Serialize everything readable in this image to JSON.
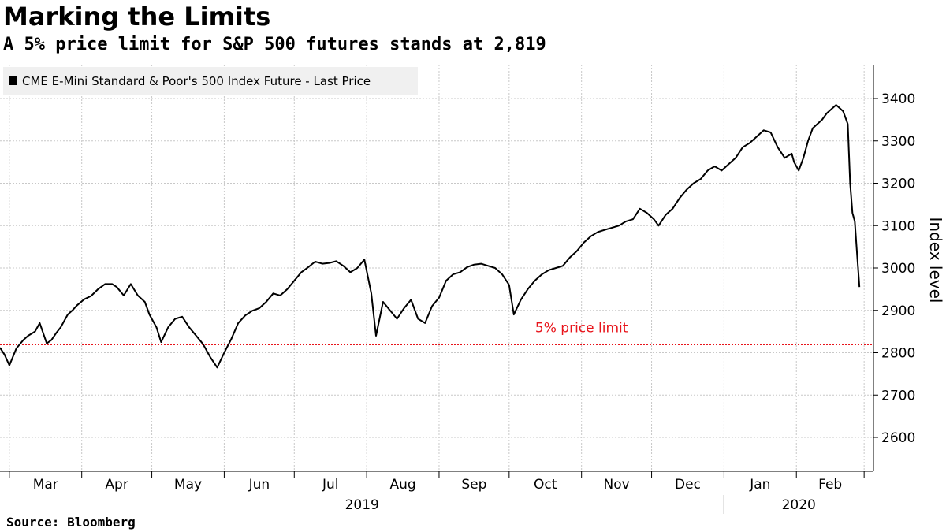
{
  "header": {
    "title": "Marking the Limits",
    "subtitle": "A 5% price limit for S&P 500 futures stands at 2,819"
  },
  "footer": {
    "source": "Source: Bloomberg"
  },
  "colors": {
    "line": "#000000",
    "grid": "#c8c8c8",
    "limit": "#e8141b",
    "legend_bg": "#f0f0f0"
  },
  "chart_data": {
    "type": "line",
    "legend": "CME E-Mini Standard & Poor's 500 Index Future - Last Price",
    "legend_position": "top-left",
    "ylabel": "Index level",
    "yaxis_side": "right",
    "ylim": [
      2520,
      3480
    ],
    "yticks": [
      2600,
      2700,
      2800,
      2900,
      3000,
      3100,
      3200,
      3300,
      3400
    ],
    "grid": true,
    "xlim": [
      "2019-02-25",
      "2020-03-05"
    ],
    "months": [
      {
        "label": "Mar",
        "date": "2019-03-01"
      },
      {
        "label": "Apr",
        "date": "2019-04-01"
      },
      {
        "label": "May",
        "date": "2019-05-01"
      },
      {
        "label": "Jun",
        "date": "2019-06-01"
      },
      {
        "label": "Jul",
        "date": "2019-07-01"
      },
      {
        "label": "Aug",
        "date": "2019-08-01"
      },
      {
        "label": "Sep",
        "date": "2019-09-01"
      },
      {
        "label": "Oct",
        "date": "2019-10-01"
      },
      {
        "label": "Nov",
        "date": "2019-11-01"
      },
      {
        "label": "Dec",
        "date": "2019-12-01"
      },
      {
        "label": "Jan",
        "date": "2020-01-01"
      },
      {
        "label": "Feb",
        "date": "2020-02-01"
      },
      {
        "label": "",
        "date": "2020-03-01"
      }
    ],
    "years": [
      {
        "label": "2019",
        "start": "2019-02-25",
        "end": "2020-01-01"
      },
      {
        "label": "2020",
        "start": "2020-01-01",
        "end": "2020-03-05"
      }
    ],
    "reference_line": {
      "value": 2819,
      "label": "5% price limit",
      "label_date": "2019-11-01"
    },
    "series": [
      {
        "x": [
          "2019-02-25",
          "2019-02-27",
          "2019-03-01",
          "2019-03-04",
          "2019-03-07",
          "2019-03-09",
          "2019-03-12",
          "2019-03-14",
          "2019-03-17",
          "2019-03-19",
          "2019-03-21",
          "2019-03-23",
          "2019-03-26",
          "2019-03-28",
          "2019-03-30",
          "2019-04-02",
          "2019-04-05",
          "2019-04-08",
          "2019-04-11",
          "2019-04-14",
          "2019-04-16",
          "2019-04-19",
          "2019-04-22",
          "2019-04-25",
          "2019-04-28",
          "2019-04-30",
          "2019-05-03",
          "2019-05-05",
          "2019-05-08",
          "2019-05-11",
          "2019-05-14",
          "2019-05-17",
          "2019-05-20",
          "2019-05-23",
          "2019-05-26",
          "2019-05-29",
          "2019-06-01",
          "2019-06-04",
          "2019-06-07",
          "2019-06-10",
          "2019-06-13",
          "2019-06-16",
          "2019-06-19",
          "2019-06-22",
          "2019-06-25",
          "2019-06-28",
          "2019-07-01",
          "2019-07-04",
          "2019-07-07",
          "2019-07-10",
          "2019-07-13",
          "2019-07-16",
          "2019-07-19",
          "2019-07-22",
          "2019-07-25",
          "2019-07-28",
          "2019-07-31",
          "2019-08-03",
          "2019-08-05",
          "2019-08-08",
          "2019-08-11",
          "2019-08-14",
          "2019-08-17",
          "2019-08-20",
          "2019-08-23",
          "2019-08-26",
          "2019-08-29",
          "2019-09-01",
          "2019-09-04",
          "2019-09-07",
          "2019-09-10",
          "2019-09-13",
          "2019-09-16",
          "2019-09-19",
          "2019-09-22",
          "2019-09-25",
          "2019-09-28",
          "2019-10-01",
          "2019-10-03",
          "2019-10-06",
          "2019-10-09",
          "2019-10-12",
          "2019-10-15",
          "2019-10-18",
          "2019-10-21",
          "2019-10-24",
          "2019-10-27",
          "2019-10-30",
          "2019-11-02",
          "2019-11-05",
          "2019-11-08",
          "2019-11-11",
          "2019-11-14",
          "2019-11-17",
          "2019-11-20",
          "2019-11-23",
          "2019-11-26",
          "2019-11-29",
          "2019-12-02",
          "2019-12-04",
          "2019-12-07",
          "2019-12-10",
          "2019-12-13",
          "2019-12-16",
          "2019-12-19",
          "2019-12-22",
          "2019-12-25",
          "2019-12-28",
          "2019-12-31",
          "2020-01-03",
          "2020-01-06",
          "2020-01-09",
          "2020-01-12",
          "2020-01-15",
          "2020-01-18",
          "2020-01-21",
          "2020-01-24",
          "2020-01-27",
          "2020-01-30",
          "2020-01-31",
          "2020-02-02",
          "2020-02-04",
          "2020-02-06",
          "2020-02-08",
          "2020-02-10",
          "2020-02-12",
          "2020-02-14",
          "2020-02-16",
          "2020-02-18",
          "2020-02-19",
          "2020-02-21",
          "2020-02-23",
          "2020-02-24",
          "2020-02-25",
          "2020-02-26",
          "2020-02-27",
          "2020-02-28"
        ],
        "values": [
          2812,
          2795,
          2770,
          2810,
          2830,
          2840,
          2850,
          2870,
          2822,
          2830,
          2846,
          2860,
          2890,
          2900,
          2912,
          2926,
          2934,
          2950,
          2962,
          2962,
          2955,
          2935,
          2962,
          2935,
          2920,
          2890,
          2860,
          2825,
          2860,
          2880,
          2885,
          2860,
          2840,
          2820,
          2790,
          2765,
          2800,
          2832,
          2870,
          2888,
          2899,
          2905,
          2920,
          2940,
          2935,
          2950,
          2970,
          2990,
          3002,
          3015,
          3010,
          3012,
          3016,
          3005,
          2990,
          3000,
          3020,
          2940,
          2840,
          2920,
          2900,
          2880,
          2905,
          2925,
          2880,
          2870,
          2910,
          2930,
          2970,
          2985,
          2990,
          3002,
          3008,
          3010,
          3005,
          3000,
          2985,
          2960,
          2890,
          2925,
          2950,
          2970,
          2985,
          2995,
          3000,
          3005,
          3025,
          3040,
          3060,
          3075,
          3085,
          3090,
          3095,
          3100,
          3110,
          3115,
          3140,
          3130,
          3115,
          3100,
          3125,
          3140,
          3165,
          3185,
          3200,
          3210,
          3230,
          3240,
          3230,
          3245,
          3260,
          3285,
          3295,
          3310,
          3325,
          3320,
          3285,
          3260,
          3270,
          3250,
          3230,
          3260,
          3300,
          3330,
          3340,
          3350,
          3365,
          3375,
          3385,
          3380,
          3370,
          3340,
          3200,
          3130,
          3110,
          3030,
          2955
        ]
      }
    ]
  }
}
